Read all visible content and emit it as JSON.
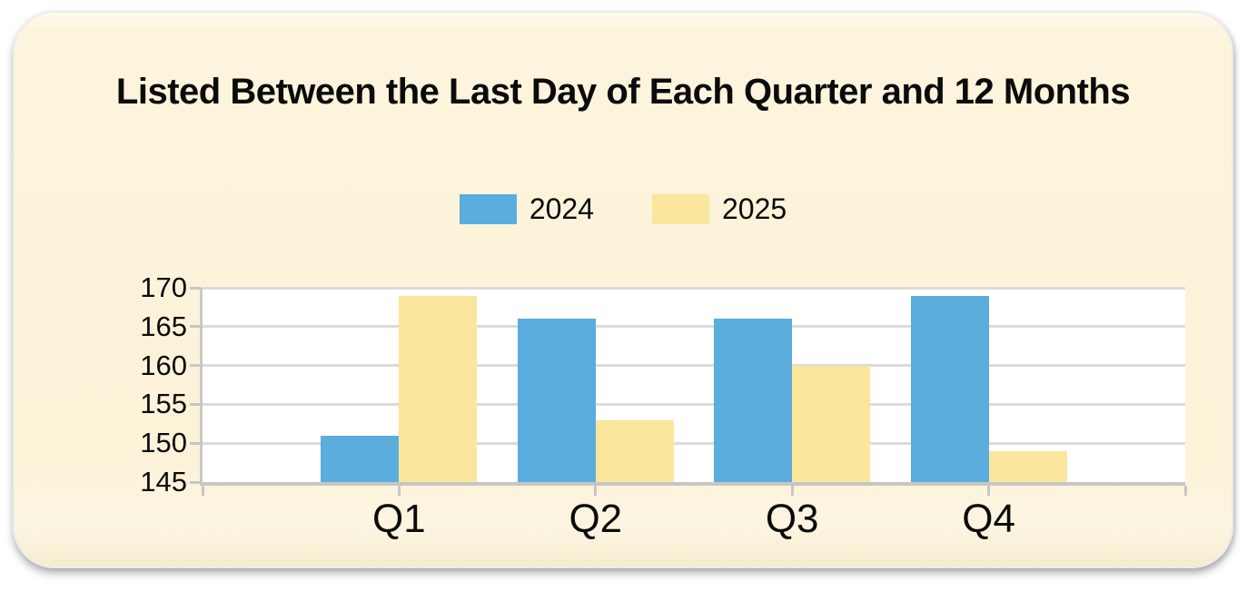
{
  "panel": {
    "background_color": "#FBF2D8",
    "plot_background_color": "#FFFFFF",
    "gridline_color": "#DBDBDB",
    "axis_color": "#C6C6C6"
  },
  "chart_data": {
    "type": "bar",
    "title": "Listed Between the Last Day of Each Quarter and 12 Months",
    "categories": [
      "Q1",
      "Q2",
      "Q3",
      "Q4"
    ],
    "series": [
      {
        "name": "2024",
        "color": "#5AADDC",
        "values": [
          151,
          166,
          166,
          169
        ]
      },
      {
        "name": "2025",
        "color": "#FAE69D",
        "values": [
          169,
          153,
          160,
          149
        ]
      }
    ],
    "ylim": [
      145,
      170
    ],
    "yticks": [
      145,
      150,
      155,
      160,
      165,
      170
    ],
    "xlabel": "",
    "ylabel": "",
    "grid": true,
    "legend_position": "top"
  }
}
